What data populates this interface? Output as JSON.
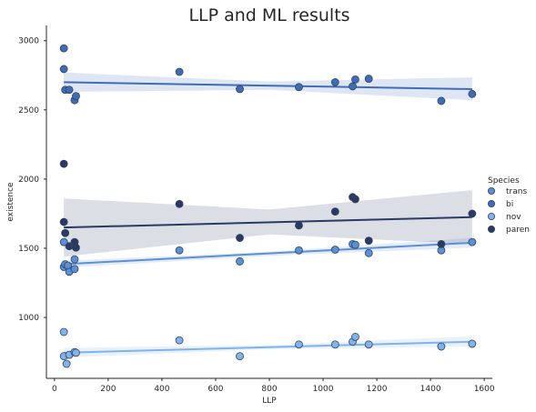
{
  "chart_data": {
    "type": "scatter",
    "title": "LLP and ML results",
    "xlabel": "LLP",
    "ylabel": "existence",
    "xlim": [
      -30,
      1630
    ],
    "ylim": [
      560,
      3110
    ],
    "xticks": [
      0,
      200,
      400,
      600,
      800,
      1000,
      1200,
      1400,
      1600
    ],
    "yticks": [
      1000,
      1500,
      2000,
      2500,
      3000
    ],
    "grid": false,
    "legend": {
      "title": "Species",
      "placement": "right"
    },
    "series": [
      {
        "name": "trans",
        "color": "#5b8fd6",
        "points": [
          [
            35,
            1545
          ],
          [
            35,
            1365
          ],
          [
            40,
            1385
          ],
          [
            50,
            1375
          ],
          [
            55,
            1330
          ],
          [
            75,
            1350
          ],
          [
            75,
            1420
          ],
          [
            465,
            1485
          ],
          [
            690,
            1405
          ],
          [
            910,
            1485
          ],
          [
            1045,
            1490
          ],
          [
            1110,
            1530
          ],
          [
            1120,
            1525
          ],
          [
            1170,
            1465
          ],
          [
            1440,
            1485
          ],
          [
            1555,
            1545
          ]
        ],
        "fit": [
          [
            35,
            1385
          ],
          [
            1555,
            1540
          ]
        ],
        "band": [
          [
            35,
            1360,
            1410
          ],
          [
            800,
            1445,
            1475
          ],
          [
            1555,
            1505,
            1575
          ]
        ]
      },
      {
        "name": "bi",
        "color": "#3f6db5",
        "points": [
          [
            35,
            2945
          ],
          [
            35,
            2795
          ],
          [
            40,
            2645
          ],
          [
            55,
            2645
          ],
          [
            75,
            2570
          ],
          [
            80,
            2600
          ],
          [
            465,
            2775
          ],
          [
            690,
            2650
          ],
          [
            910,
            2665
          ],
          [
            1045,
            2700
          ],
          [
            1110,
            2670
          ],
          [
            1120,
            2720
          ],
          [
            1170,
            2725
          ],
          [
            1440,
            2565
          ],
          [
            1555,
            2615
          ]
        ],
        "fit": [
          [
            35,
            2700
          ],
          [
            1555,
            2650
          ]
        ],
        "band": [
          [
            35,
            2630,
            2770
          ],
          [
            800,
            2645,
            2705
          ],
          [
            1555,
            2570,
            2735
          ]
        ]
      },
      {
        "name": "nov",
        "color": "#7fb3ea",
        "points": [
          [
            35,
            895
          ],
          [
            35,
            720
          ],
          [
            45,
            665
          ],
          [
            55,
            730
          ],
          [
            75,
            750
          ],
          [
            80,
            745
          ],
          [
            465,
            835
          ],
          [
            690,
            720
          ],
          [
            910,
            805
          ],
          [
            1045,
            805
          ],
          [
            1110,
            825
          ],
          [
            1120,
            860
          ],
          [
            1170,
            805
          ],
          [
            1440,
            790
          ],
          [
            1555,
            810
          ]
        ],
        "fit": [
          [
            35,
            745
          ],
          [
            1555,
            825
          ]
        ],
        "band": [
          [
            35,
            710,
            780
          ],
          [
            800,
            770,
            800
          ],
          [
            1555,
            790,
            865
          ]
        ]
      },
      {
        "name": "paren",
        "color": "#2a3a63",
        "points": [
          [
            35,
            2110
          ],
          [
            35,
            1690
          ],
          [
            40,
            1610
          ],
          [
            55,
            1515
          ],
          [
            75,
            1515
          ],
          [
            75,
            1545
          ],
          [
            80,
            1505
          ],
          [
            465,
            1820
          ],
          [
            690,
            1575
          ],
          [
            910,
            1665
          ],
          [
            1045,
            1765
          ],
          [
            1110,
            1870
          ],
          [
            1120,
            1855
          ],
          [
            1170,
            1555
          ],
          [
            1440,
            1530
          ],
          [
            1555,
            1750
          ]
        ],
        "fit": [
          [
            35,
            1650
          ],
          [
            1555,
            1725
          ]
        ],
        "band": [
          [
            35,
            1440,
            1860
          ],
          [
            800,
            1600,
            1780
          ],
          [
            1555,
            1530,
            1920
          ]
        ]
      }
    ]
  }
}
